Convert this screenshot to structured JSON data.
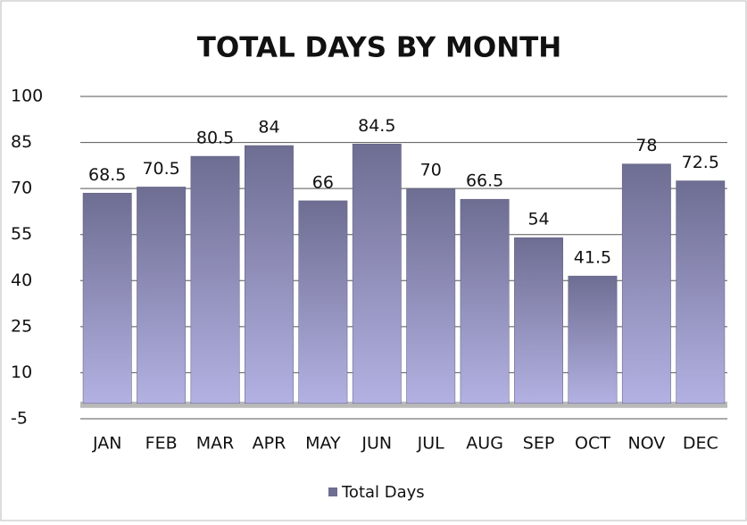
{
  "chart_data": {
    "type": "bar",
    "title": "TOTAL DAYS BY MONTH",
    "categories": [
      "JAN",
      "FEB",
      "MAR",
      "APR",
      "MAY",
      "JUN",
      "JUL",
      "AUG",
      "SEP",
      "OCT",
      "NOV",
      "DEC"
    ],
    "series": [
      {
        "name": "Total Days",
        "color": "#6e6d92",
        "values": [
          68.5,
          70.5,
          80.5,
          84,
          66,
          84.5,
          70,
          66.5,
          54,
          41.5,
          78,
          72.5
        ]
      }
    ],
    "ylim": [
      -5,
      100
    ],
    "yticks": [
      -5,
      10,
      25,
      40,
      55,
      70,
      85,
      100
    ],
    "grid": true,
    "legend": "bottom"
  }
}
